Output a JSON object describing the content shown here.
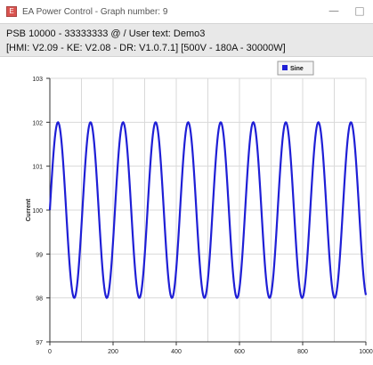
{
  "window": {
    "title": "EA Power Control - Graph number: 9",
    "icon": "app-logo-icon",
    "minimize_icon": "minimize-icon",
    "maximize_icon": "maximize-icon"
  },
  "header": {
    "line1": "PSB 10000 - 33333333 @ / User text: Demo3",
    "line2": "[HMI: V2.09 - KE: V2.08 - DR: V1.0.7.1] [500V - 180A - 30000W]"
  },
  "chart_data": {
    "type": "line",
    "title": "",
    "xlabel": "",
    "ylabel": "Current",
    "xlim": [
      0,
      1000
    ],
    "ylim": [
      97,
      103
    ],
    "xticks": [
      0,
      200,
      400,
      600,
      800,
      1000
    ],
    "yticks": [
      97,
      98,
      99,
      100,
      101,
      102,
      103
    ],
    "grid": true,
    "legend_position": "top-right",
    "series": [
      {
        "name": "Sine",
        "color": "#1f1fd6",
        "function": "100 + 2*sin(2*pi*x/103)",
        "x_start": 0,
        "x_end": 1000,
        "amplitude": 2,
        "offset": 100,
        "period": 103
      }
    ]
  }
}
